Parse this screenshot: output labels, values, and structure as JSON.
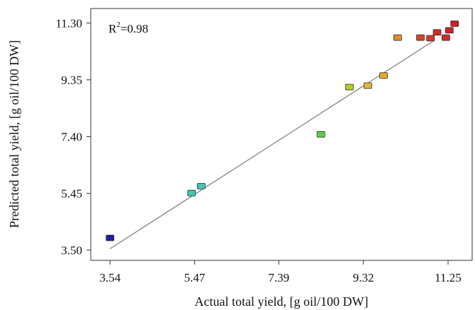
{
  "chart_data": {
    "type": "scatter",
    "title": "",
    "xlabel": "Actual total yield, [g oil/100 DW]",
    "ylabel": "Predicted total yield, [g oil/100 DW]",
    "annotation": {
      "prefix": "R",
      "superscript": "2",
      "suffix": "=0.98"
    },
    "xlim": [
      3.1,
      11.8
    ],
    "ylim": [
      3.15,
      11.8
    ],
    "x_ticks": [
      3.54,
      5.47,
      7.39,
      9.32,
      11.25
    ],
    "y_ticks": [
      3.5,
      5.45,
      7.4,
      9.35,
      11.3
    ],
    "x_tick_labels": [
      "3.54",
      "5.47",
      "7.39",
      "9.32",
      "11.25"
    ],
    "y_tick_labels": [
      "3.50",
      "5.45",
      "7.40",
      "9.35",
      "11.30"
    ],
    "grid": false,
    "fit_line": {
      "x": [
        3.54,
        10.95
      ],
      "y": [
        3.55,
        10.72
      ],
      "color": "#7a7a7a"
    },
    "points": [
      {
        "x": 3.54,
        "y": 3.92,
        "color": "#1e1eaa"
      },
      {
        "x": 5.4,
        "y": 5.46,
        "color": "#3cc8b4"
      },
      {
        "x": 5.62,
        "y": 5.7,
        "color": "#3cc8b4"
      },
      {
        "x": 8.35,
        "y": 7.48,
        "color": "#5ad23c"
      },
      {
        "x": 9.0,
        "y": 9.1,
        "color": "#b4d21e"
      },
      {
        "x": 9.42,
        "y": 9.15,
        "color": "#e6b432"
      },
      {
        "x": 9.78,
        "y": 9.5,
        "color": "#e6aa28"
      },
      {
        "x": 10.1,
        "y": 10.8,
        "color": "#e68c1e"
      },
      {
        "x": 10.62,
        "y": 10.8,
        "color": "#d24628"
      },
      {
        "x": 10.85,
        "y": 10.78,
        "color": "#d23c28"
      },
      {
        "x": 11.0,
        "y": 10.98,
        "color": "#d22828"
      },
      {
        "x": 11.2,
        "y": 10.8,
        "color": "#d22828"
      },
      {
        "x": 11.28,
        "y": 11.05,
        "color": "#d21e1e"
      },
      {
        "x": 11.4,
        "y": 11.28,
        "color": "#d21e1e"
      }
    ]
  }
}
